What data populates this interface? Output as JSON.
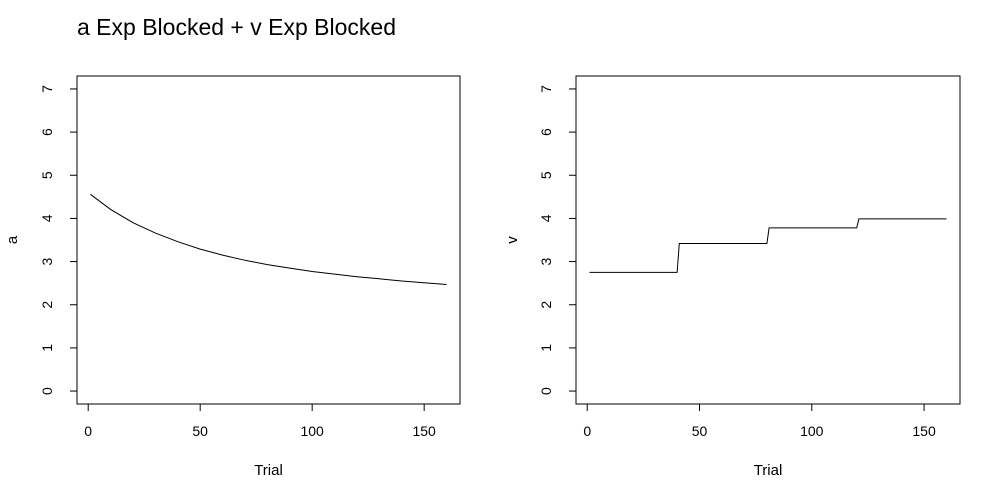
{
  "title": "a Exp Blocked + v Exp Blocked",
  "chart_data": [
    {
      "type": "line",
      "xlabel": "Trial",
      "ylabel": "a",
      "xlim": [
        -5,
        166
      ],
      "ylim": [
        -0.3,
        7.3
      ],
      "xticks": [
        0,
        50,
        100,
        150
      ],
      "yticks": [
        0,
        1,
        2,
        3,
        4,
        5,
        6,
        7
      ],
      "grid": false,
      "x": [
        1,
        10,
        20,
        30,
        40,
        50,
        60,
        70,
        80,
        90,
        100,
        110,
        120,
        130,
        140,
        150,
        160
      ],
      "y": [
        4.56,
        4.21,
        3.9,
        3.66,
        3.46,
        3.29,
        3.15,
        3.03,
        2.93,
        2.85,
        2.77,
        2.71,
        2.65,
        2.6,
        2.55,
        2.51,
        2.47
      ]
    },
    {
      "type": "line",
      "xlabel": "Trial",
      "ylabel": "v",
      "xlim": [
        -5,
        166
      ],
      "ylim": [
        -0.3,
        7.3
      ],
      "xticks": [
        0,
        50,
        100,
        150
      ],
      "yticks": [
        0,
        1,
        2,
        3,
        4,
        5,
        6,
        7
      ],
      "grid": false,
      "x": [
        1,
        40,
        41,
        80,
        81,
        120,
        121,
        160
      ],
      "y": [
        2.75,
        2.75,
        3.42,
        3.42,
        3.78,
        3.78,
        3.99,
        3.99
      ]
    }
  ]
}
